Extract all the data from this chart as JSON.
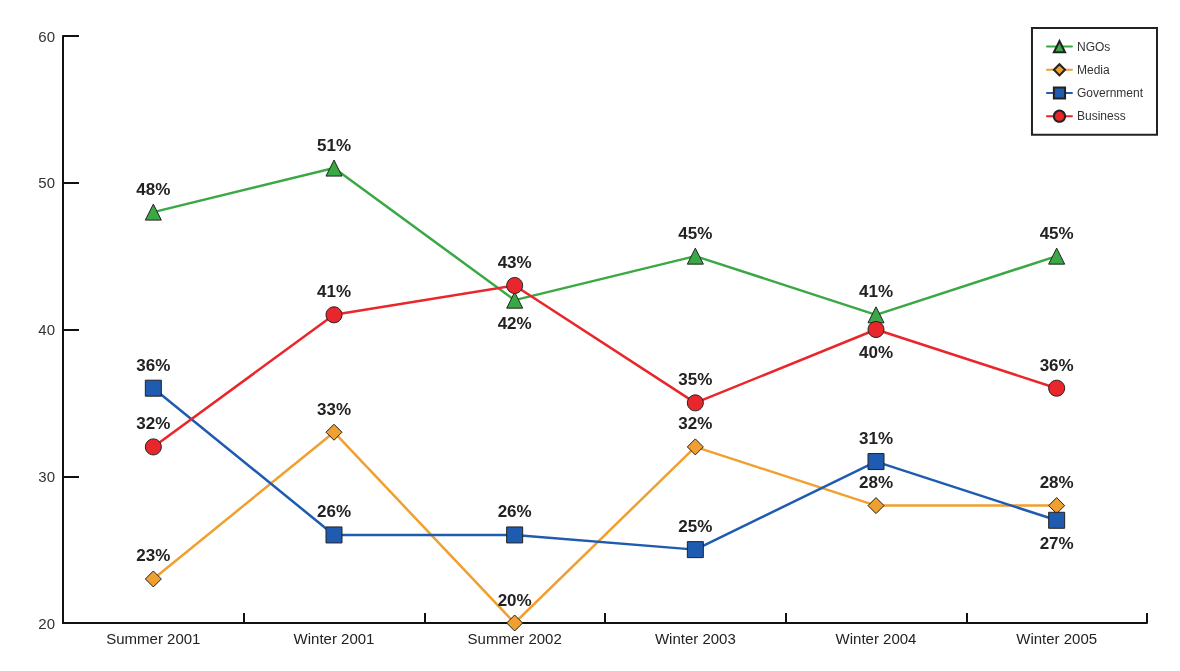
{
  "chart_data": {
    "type": "line",
    "categories": [
      "Summer 2001",
      "Winter 2001",
      "Summer 2002",
      "Winter 2003",
      "Winter 2004",
      "Winter 2005"
    ],
    "series": [
      {
        "name": "NGOs",
        "color": "#3aa845",
        "marker": "triangle",
        "values": [
          48,
          51,
          42,
          45,
          41,
          45
        ],
        "value_labels": [
          "48%",
          "51%",
          "42%",
          "45%",
          "41%",
          "45%"
        ]
      },
      {
        "name": "Media",
        "color": "#f0a030",
        "marker": "diamond",
        "values": [
          23,
          33,
          20,
          32,
          28,
          28
        ],
        "value_labels": [
          "23%",
          "33%",
          "20%",
          "32%",
          "28%",
          "28%"
        ]
      },
      {
        "name": "Government",
        "color": "#1f5bb0",
        "marker": "square",
        "values": [
          36,
          26,
          26,
          25,
          31,
          27
        ],
        "value_labels": [
          "36%",
          "26%",
          "26%",
          "25%",
          "31%",
          "27%"
        ]
      },
      {
        "name": "Business",
        "color": "#e8262b",
        "marker": "circle",
        "values": [
          32,
          41,
          43,
          35,
          40,
          36
        ],
        "value_labels": [
          "32%",
          "41%",
          "43%",
          "35%",
          "40%",
          "36%"
        ]
      }
    ],
    "ylim": [
      20,
      60
    ],
    "yticks": [
      20,
      30,
      40,
      50,
      60
    ],
    "grid": false,
    "legend": "top right",
    "line_style": "solid"
  }
}
